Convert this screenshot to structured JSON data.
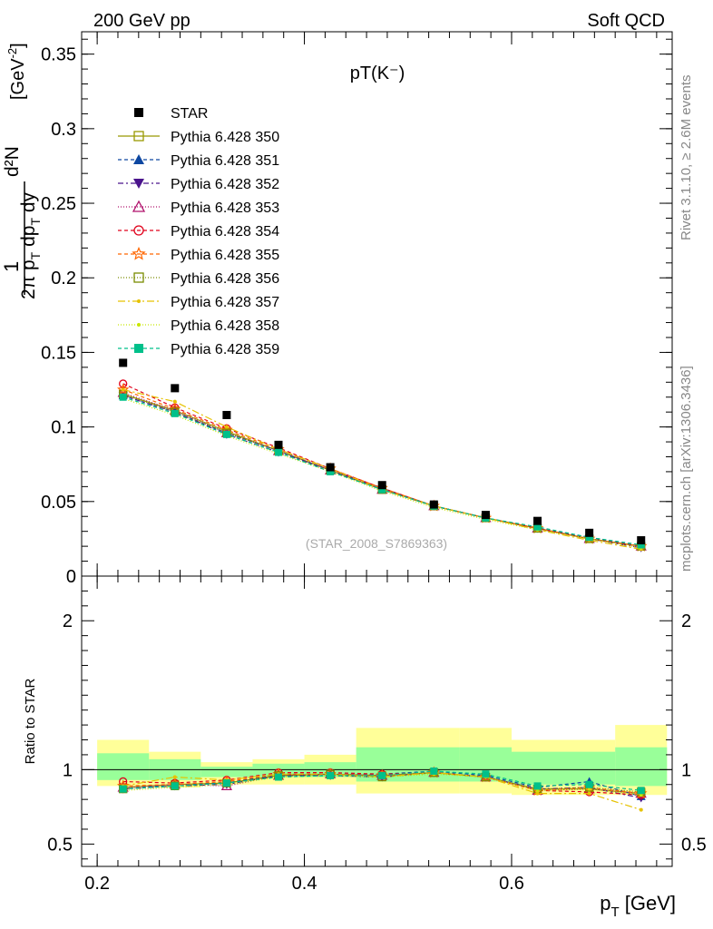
{
  "header": {
    "left": "200 GeV pp",
    "right": "Soft QCD",
    "side_top": "Rivet 3.1.10, ≥ 2.6M events",
    "side_bottom": "mcplots.cern.ch [arXiv:1306.3436]"
  },
  "chart_data": {
    "type": "line",
    "title": "pT(K⁻)",
    "analysis_label": "(STAR_2008_S7869363)",
    "xlabel": "p_T [GeV]",
    "ylabel": "1/(2π p_T) d²N/(dp_T dy) [GeV⁻²]",
    "ratio_ylabel": "Ratio to STAR",
    "xlim": [
      0.185,
      0.755
    ],
    "ylim": [
      0,
      0.365
    ],
    "ratio_ylim": [
      0.35,
      2.3
    ],
    "x_ticks": [
      "0.2",
      "0.4",
      "0.6"
    ],
    "y_ticks": [
      "0",
      "0.05",
      "0.1",
      "0.15",
      "0.2",
      "0.25",
      "0.3",
      "0.35"
    ],
    "ratio_ticks": [
      "0.5",
      "1",
      "2"
    ],
    "bin_edges": [
      0.2,
      0.25,
      0.3,
      0.35,
      0.4,
      0.45,
      0.5,
      0.55,
      0.6,
      0.65,
      0.7,
      0.75
    ],
    "x": [
      0.225,
      0.275,
      0.325,
      0.375,
      0.425,
      0.475,
      0.525,
      0.575,
      0.625,
      0.675,
      0.725
    ],
    "data": {
      "name": "STAR",
      "values": [
        0.143,
        0.126,
        0.108,
        0.088,
        0.073,
        0.061,
        0.048,
        0.041,
        0.037,
        0.029,
        0.024
      ],
      "color": "#000000"
    },
    "band_outer": [
      [
        0.2,
        0.25,
        0.89,
        1.2
      ],
      [
        0.25,
        0.3,
        0.88,
        1.12
      ],
      [
        0.3,
        0.35,
        0.9,
        1.05
      ],
      [
        0.35,
        0.4,
        0.9,
        1.07
      ],
      [
        0.4,
        0.45,
        0.9,
        1.1
      ],
      [
        0.45,
        0.55,
        0.84,
        1.28
      ],
      [
        0.55,
        0.6,
        0.84,
        1.28
      ],
      [
        0.6,
        0.7,
        0.83,
        1.2
      ],
      [
        0.7,
        0.75,
        0.83,
        1.3
      ]
    ],
    "band_inner": [
      [
        0.2,
        0.25,
        0.93,
        1.11
      ],
      [
        0.25,
        0.3,
        0.93,
        1.07
      ],
      [
        0.3,
        0.35,
        0.95,
        1.02
      ],
      [
        0.35,
        0.4,
        0.95,
        1.04
      ],
      [
        0.4,
        0.45,
        0.95,
        1.05
      ],
      [
        0.45,
        0.55,
        0.92,
        1.15
      ],
      [
        0.55,
        0.6,
        0.92,
        1.15
      ],
      [
        0.6,
        0.7,
        0.9,
        1.12
      ],
      [
        0.7,
        0.75,
        0.89,
        1.15
      ]
    ],
    "series": [
      {
        "name": "Pythia 6.428 350",
        "color": "#999900",
        "marker": "square-open",
        "dash": "",
        "values": [
          0.122,
          0.111,
          0.097,
          0.084,
          0.071,
          0.058,
          0.047,
          0.039,
          0.032,
          0.025,
          0.02
        ],
        "ratio": [
          0.88,
          0.9,
          0.91,
          0.96,
          0.97,
          0.96,
          0.98,
          0.95,
          0.87,
          0.87,
          0.84
        ]
      },
      {
        "name": "Pythia 6.428 351",
        "color": "#0d47a1",
        "marker": "triangle-up",
        "dash": "4,3",
        "values": [
          0.121,
          0.11,
          0.096,
          0.084,
          0.071,
          0.059,
          0.047,
          0.039,
          0.032,
          0.026,
          0.02
        ],
        "ratio": [
          0.87,
          0.9,
          0.91,
          0.97,
          0.97,
          0.97,
          0.99,
          0.96,
          0.88,
          0.92,
          0.82
        ]
      },
      {
        "name": "Pythia 6.428 352",
        "color": "#4a148c",
        "marker": "triangle-down",
        "dash": "6,3,2,3",
        "values": [
          0.121,
          0.11,
          0.095,
          0.083,
          0.071,
          0.058,
          0.047,
          0.039,
          0.032,
          0.025,
          0.019
        ],
        "ratio": [
          0.87,
          0.89,
          0.9,
          0.96,
          0.96,
          0.95,
          0.98,
          0.95,
          0.87,
          0.88,
          0.81
        ]
      },
      {
        "name": "Pythia 6.428 353",
        "color": "#b0126c",
        "marker": "triangle-up-open",
        "dash": "1,2",
        "values": [
          0.123,
          0.111,
          0.096,
          0.084,
          0.071,
          0.058,
          0.047,
          0.039,
          0.032,
          0.025,
          0.02
        ],
        "ratio": [
          0.88,
          0.9,
          0.89,
          0.96,
          0.97,
          0.96,
          0.98,
          0.95,
          0.86,
          0.87,
          0.84
        ]
      },
      {
        "name": "Pythia 6.428 354",
        "color": "#e0001a",
        "marker": "circle-open",
        "dash": "4,3",
        "values": [
          0.129,
          0.113,
          0.099,
          0.086,
          0.072,
          0.059,
          0.047,
          0.039,
          0.032,
          0.025,
          0.02
        ],
        "ratio": [
          0.92,
          0.91,
          0.93,
          0.98,
          0.98,
          0.97,
          0.98,
          0.95,
          0.86,
          0.85,
          0.83
        ]
      },
      {
        "name": "Pythia 6.428 355",
        "color": "#ff6600",
        "marker": "star-open",
        "dash": "4,3",
        "values": [
          0.125,
          0.112,
          0.098,
          0.085,
          0.072,
          0.059,
          0.047,
          0.039,
          0.032,
          0.025,
          0.02
        ],
        "ratio": [
          0.89,
          0.9,
          0.92,
          0.97,
          0.97,
          0.96,
          0.98,
          0.95,
          0.86,
          0.88,
          0.84
        ]
      },
      {
        "name": "Pythia 6.428 356",
        "color": "#7a8c00",
        "marker": "square-open",
        "dash": "1,2",
        "values": [
          0.122,
          0.11,
          0.096,
          0.084,
          0.071,
          0.058,
          0.047,
          0.039,
          0.032,
          0.025,
          0.02
        ],
        "ratio": [
          0.87,
          0.89,
          0.91,
          0.96,
          0.97,
          0.95,
          0.98,
          0.95,
          0.87,
          0.88,
          0.85
        ]
      },
      {
        "name": "Pythia 6.428 357",
        "color": "#e6c200",
        "marker": "dot",
        "dash": "8,3,2,3",
        "values": [
          0.125,
          0.117,
          0.1,
          0.085,
          0.072,
          0.058,
          0.047,
          0.039,
          0.031,
          0.024,
          0.018
        ],
        "ratio": [
          0.89,
          0.95,
          0.93,
          0.97,
          0.97,
          0.95,
          0.98,
          0.95,
          0.84,
          0.84,
          0.73
        ]
      },
      {
        "name": "Pythia 6.428 358",
        "color": "#c8e600",
        "marker": "dot",
        "dash": "1,2",
        "values": [
          0.119,
          0.108,
          0.094,
          0.082,
          0.07,
          0.057,
          0.046,
          0.038,
          0.031,
          0.025,
          0.019
        ],
        "ratio": [
          0.86,
          0.88,
          0.9,
          0.95,
          0.96,
          0.95,
          0.97,
          0.95,
          0.86,
          0.87,
          0.83
        ]
      },
      {
        "name": "Pythia 6.428 359",
        "color": "#00c08a",
        "marker": "square",
        "dash": "4,3",
        "values": [
          0.12,
          0.109,
          0.095,
          0.083,
          0.07,
          0.058,
          0.047,
          0.039,
          0.033,
          0.026,
          0.021
        ],
        "ratio": [
          0.87,
          0.89,
          0.91,
          0.95,
          0.96,
          0.96,
          0.99,
          0.97,
          0.89,
          0.9,
          0.86
        ]
      }
    ]
  }
}
